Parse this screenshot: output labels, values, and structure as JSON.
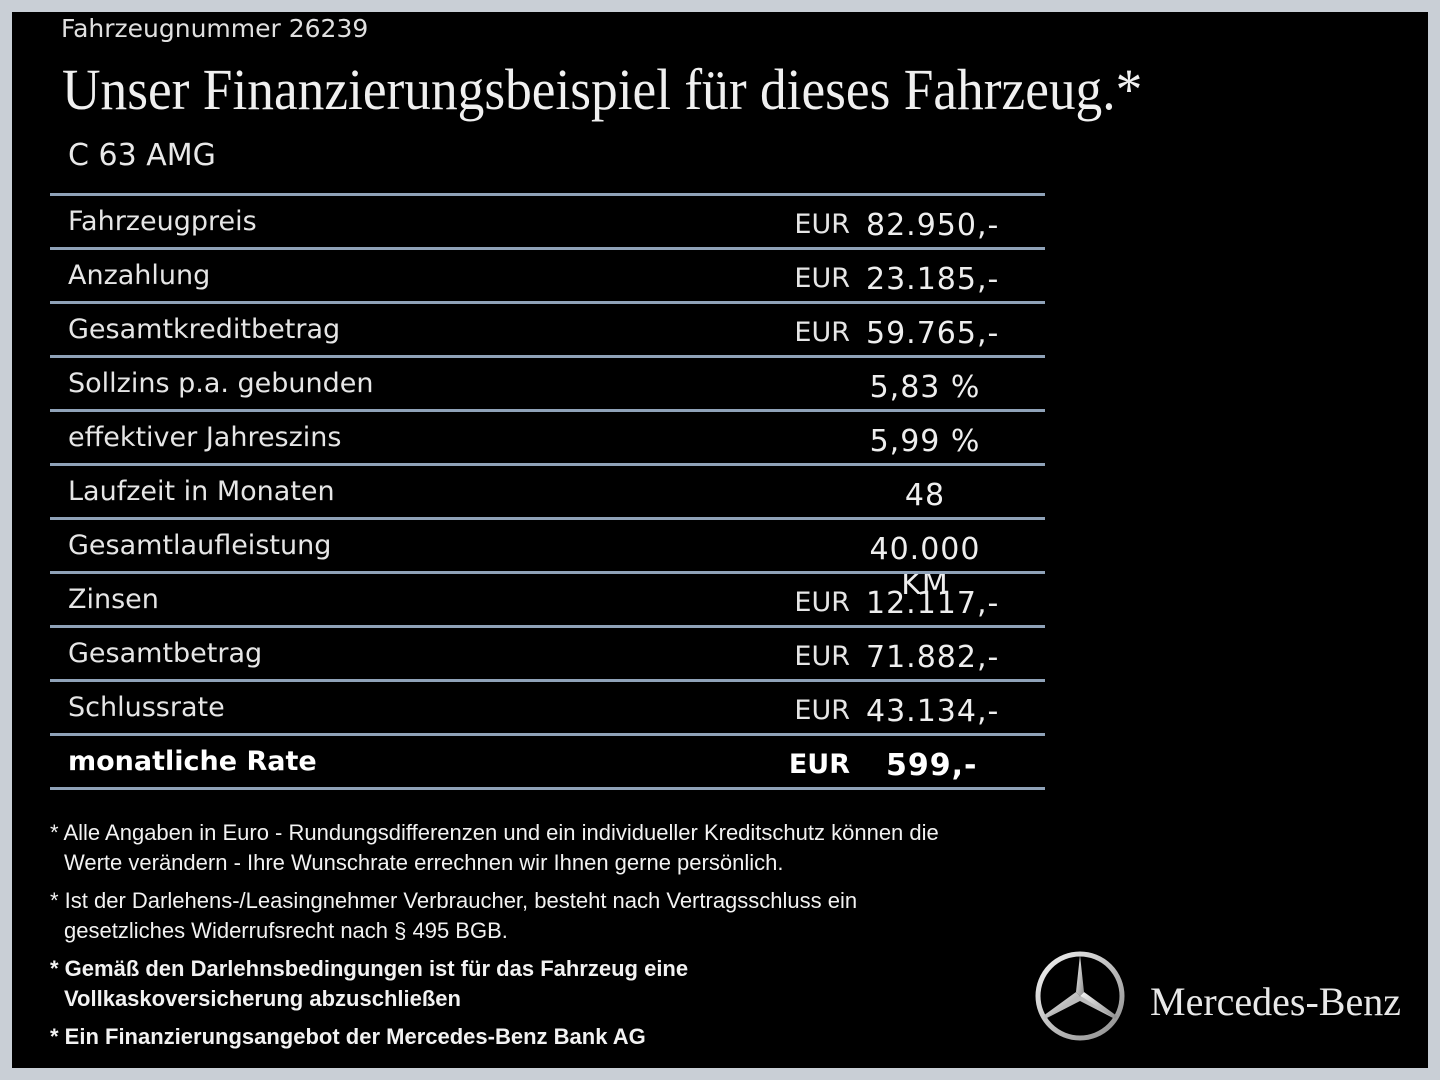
{
  "header": {
    "vehicle_number": "Fahrzeugnummer  26239",
    "title": "Unser Finanzierungsbeispiel für dieses Fahrzeug.*",
    "model": "C 63 AMG"
  },
  "table": {
    "rows": [
      {
        "label": "Fahrzeugpreis",
        "currency": "EUR",
        "value": "82.950,-"
      },
      {
        "label": "Anzahlung",
        "currency": "EUR",
        "value": "23.185,-"
      },
      {
        "label": "Gesamtkreditbetrag",
        "currency": "EUR",
        "value": "59.765,-"
      },
      {
        "label": "Sollzins p.a. gebunden",
        "value": "5,83 %"
      },
      {
        "label": "effektiver Jahreszins",
        "value": "5,99 %"
      },
      {
        "label": "Laufzeit in Monaten",
        "value": "48"
      },
      {
        "label": "Gesamtlaufleistung",
        "value": "40.000 KM"
      },
      {
        "label": "Zinsen",
        "currency": "EUR",
        "value": "12.117,-"
      },
      {
        "label": "Gesamtbetrag",
        "currency": "EUR",
        "value": "71.882,-"
      },
      {
        "label": "Schlussrate",
        "currency": "EUR",
        "value": "43.134,-"
      },
      {
        "label": "monatliche Rate",
        "currency": "EUR",
        "value": "599,-",
        "bold": true
      }
    ]
  },
  "footnotes": [
    {
      "lines": [
        "* Alle Angaben in Euro - Rundungsdifferenzen und ein individueller Kreditschutz können die",
        "Werte verändern - Ihre Wunschrate errechnen wir Ihnen gerne persönlich."
      ]
    },
    {
      "lines": [
        "* Ist der Darlehens-/Leasingnehmer Verbraucher, besteht nach Vertragsschluss ein",
        "gesetzliches  Widerrufsrecht nach § 495 BGB."
      ]
    },
    {
      "lines": [
        "* Gemäß den Darlehnsbedingungen ist für das Fahrzeug eine",
        "Vollkaskoversicherung abzuschließen"
      ],
      "bold": true
    },
    {
      "lines": [
        "* Ein Finanzierungsangebot der Mercedes-Benz Bank AG"
      ],
      "bold": true
    }
  ],
  "brand": "Mercedes-Benz"
}
